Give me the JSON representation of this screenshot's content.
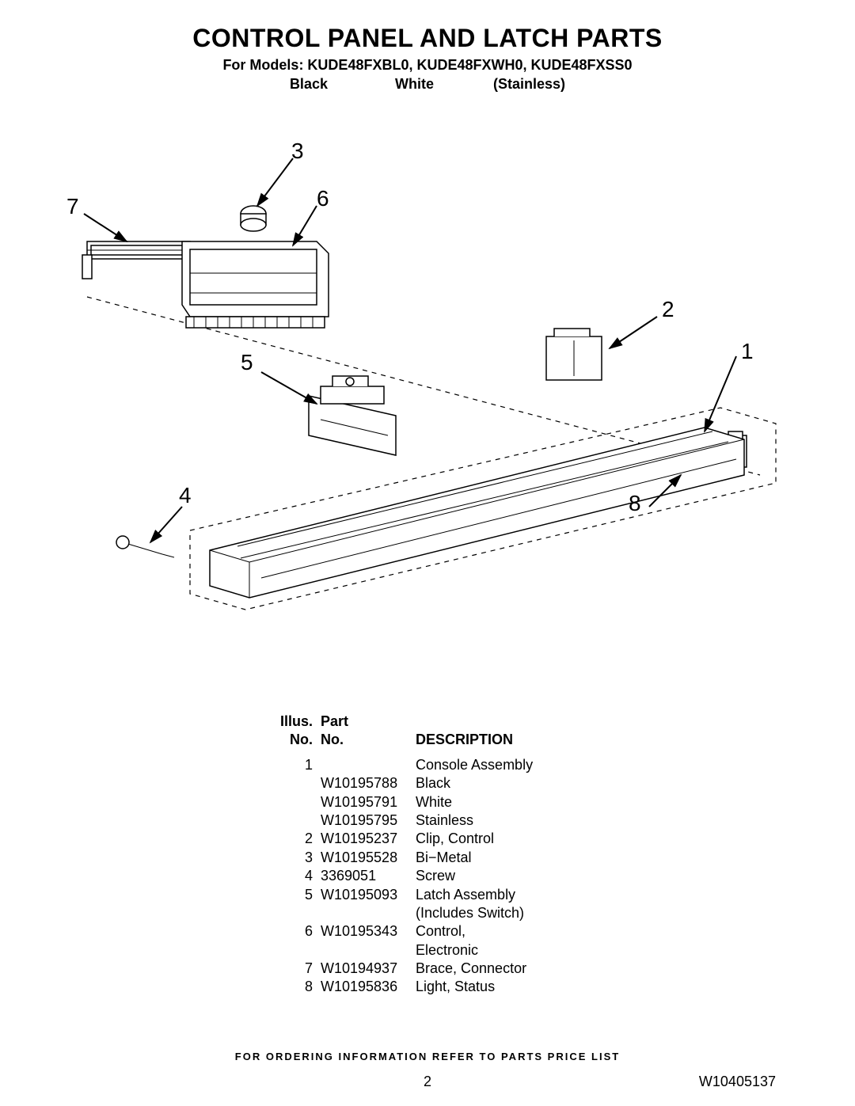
{
  "header": {
    "title": "CONTROL PANEL AND LATCH PARTS",
    "subtitle": "For Models: KUDE48FXBL0, KUDE48FXWH0, KUDE48FXSS0",
    "variants": {
      "black": "Black",
      "white": "White",
      "stainless": "(Stainless)"
    }
  },
  "diagram": {
    "callouts": {
      "1": "1",
      "2": "2",
      "3": "3",
      "4": "4",
      "5": "5",
      "6": "6",
      "7": "7",
      "8": "8"
    }
  },
  "table": {
    "headers": {
      "illus": "Illus.",
      "illus_no": "No.",
      "part": "Part",
      "part_no": "No.",
      "desc": "DESCRIPTION"
    },
    "rows": [
      {
        "illus": "1",
        "part": "",
        "desc": "Console Assembly"
      },
      {
        "illus": "",
        "part": "W10195788",
        "desc": "Black"
      },
      {
        "illus": "",
        "part": "W10195791",
        "desc": "White"
      },
      {
        "illus": "",
        "part": "W10195795",
        "desc": "Stainless"
      },
      {
        "illus": "2",
        "part": "W10195237",
        "desc": "Clip, Control"
      },
      {
        "illus": "3",
        "part": "W10195528",
        "desc": "Bi−Metal"
      },
      {
        "illus": "4",
        "part": "3369051",
        "desc": "Screw"
      },
      {
        "illus": "5",
        "part": "W10195093",
        "desc": "Latch Assembly"
      },
      {
        "illus": "",
        "part": "",
        "desc": "(Includes Switch)"
      },
      {
        "illus": "6",
        "part": "W10195343",
        "desc": "Control,"
      },
      {
        "illus": "",
        "part": "",
        "desc": "Electronic"
      },
      {
        "illus": "7",
        "part": "W10194937",
        "desc": "Brace, Connector"
      },
      {
        "illus": "8",
        "part": "W10195836",
        "desc": "Light, Status"
      }
    ]
  },
  "footer": {
    "note": "FOR ORDERING INFORMATION REFER TO PARTS PRICE LIST",
    "page": "2",
    "doc_id": "W10405137"
  }
}
